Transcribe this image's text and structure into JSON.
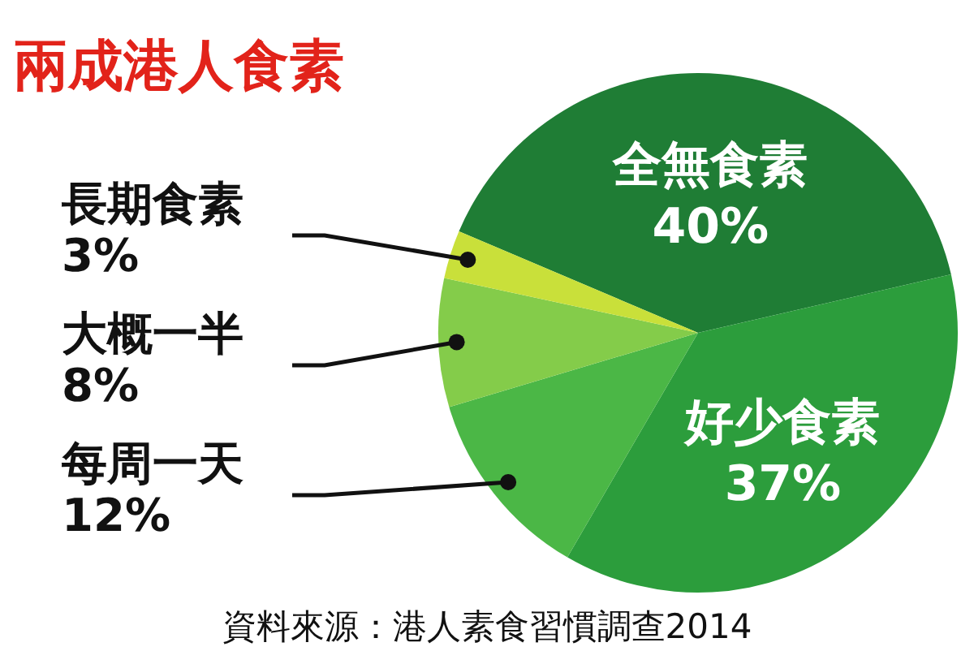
{
  "chart_data": {
    "type": "pie",
    "title": "兩成港人食素",
    "categories": [
      "全無食素",
      "好少食素",
      "每周一天",
      "大概一半",
      "長期食素"
    ],
    "values": [
      40,
      37,
      12,
      8,
      3
    ],
    "colors": [
      "#1f7d35",
      "#2c9d3c",
      "#4bb746",
      "#84cc4a",
      "#c9e03a"
    ],
    "value_labels": [
      "40%",
      "37%",
      "12%",
      "8%",
      "3%"
    ],
    "annotations": [
      "資料來源：港人素食習慣調查2014"
    ]
  }
}
